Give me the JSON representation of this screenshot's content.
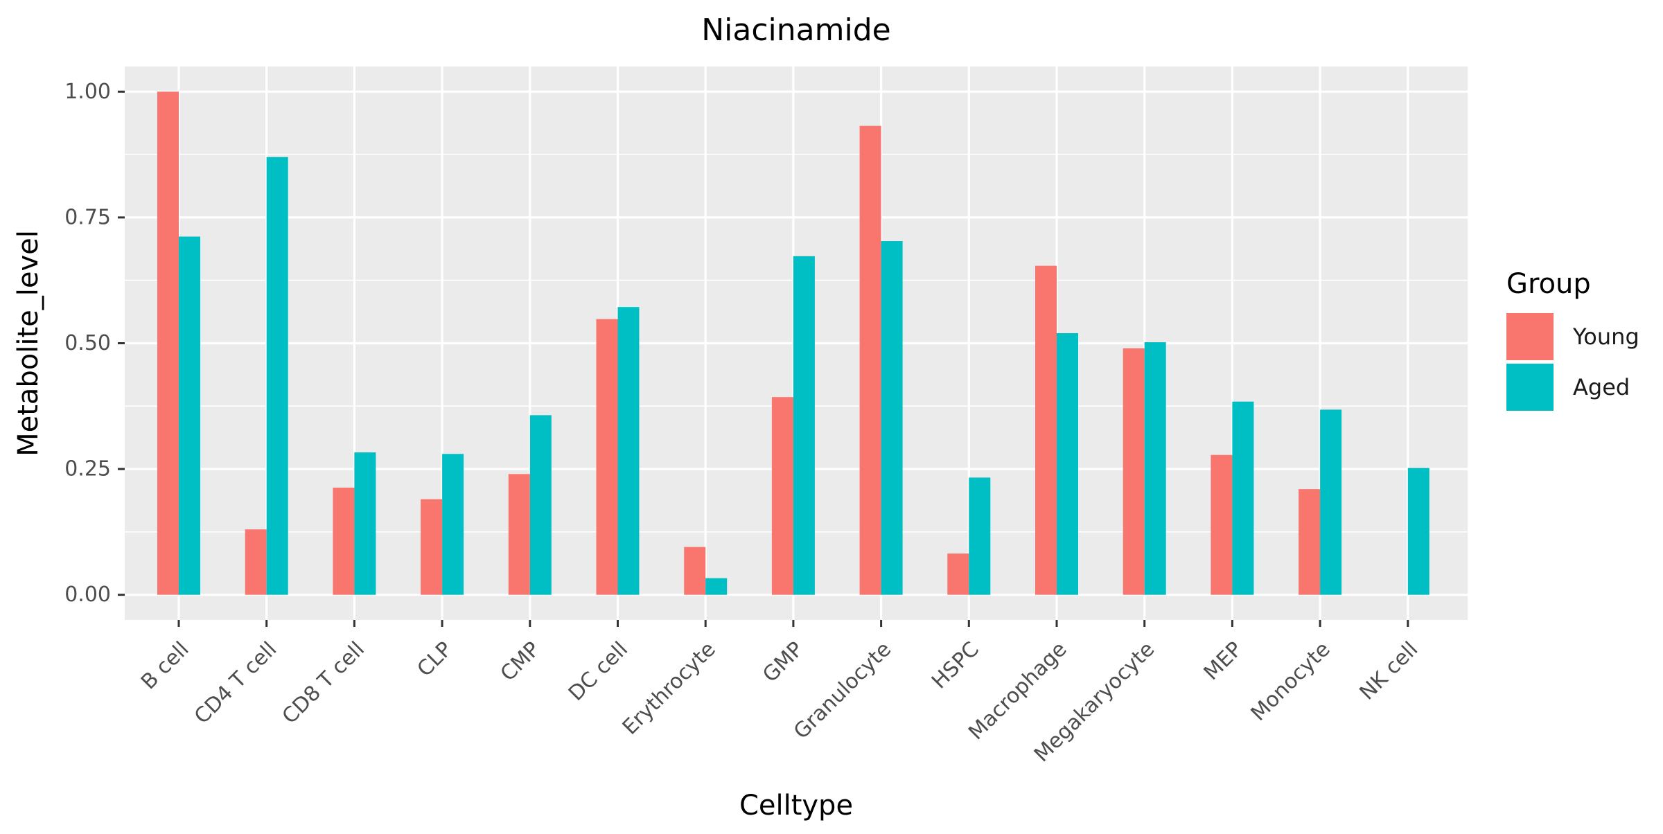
{
  "chart_data": {
    "type": "bar",
    "title": "Niacinamide",
    "xlabel": "Celltype",
    "ylabel": "Metabolite_level",
    "ylim": [
      -0.05,
      1.05
    ],
    "yticks": [
      0.0,
      0.25,
      0.5,
      0.75,
      1.0
    ],
    "ytick_labels": [
      "0.00",
      "0.25",
      "0.50",
      "0.75",
      "1.00"
    ],
    "grid": true,
    "legend_title": "Group",
    "legend_position": "right",
    "categories": [
      "B cell",
      "CD4 T cell",
      "CD8 T cell",
      "CLP",
      "CMP",
      "DC cell",
      "Erythrocyte",
      "GMP",
      "Granulocyte",
      "HSPC",
      "Macrophage",
      "Megakaryocyte",
      "MEP",
      "Monocyte",
      "NK cell"
    ],
    "series": [
      {
        "name": "Young",
        "color": "#F8766D",
        "values": [
          1.0,
          0.13,
          0.213,
          0.19,
          0.24,
          0.548,
          0.095,
          0.393,
          0.932,
          0.082,
          0.654,
          0.49,
          0.278,
          0.21,
          null
        ]
      },
      {
        "name": "Aged",
        "color": "#00BFC4",
        "values": [
          0.712,
          0.87,
          0.283,
          0.28,
          0.357,
          0.572,
          0.033,
          0.673,
          0.703,
          0.233,
          0.52,
          0.502,
          0.384,
          0.368,
          0.252
        ]
      }
    ]
  },
  "colors": {
    "panel_background": "#EBEBEB",
    "grid_major": "#FFFFFF",
    "axis_text": "#4D4D4D",
    "title_text": "#000000"
  }
}
